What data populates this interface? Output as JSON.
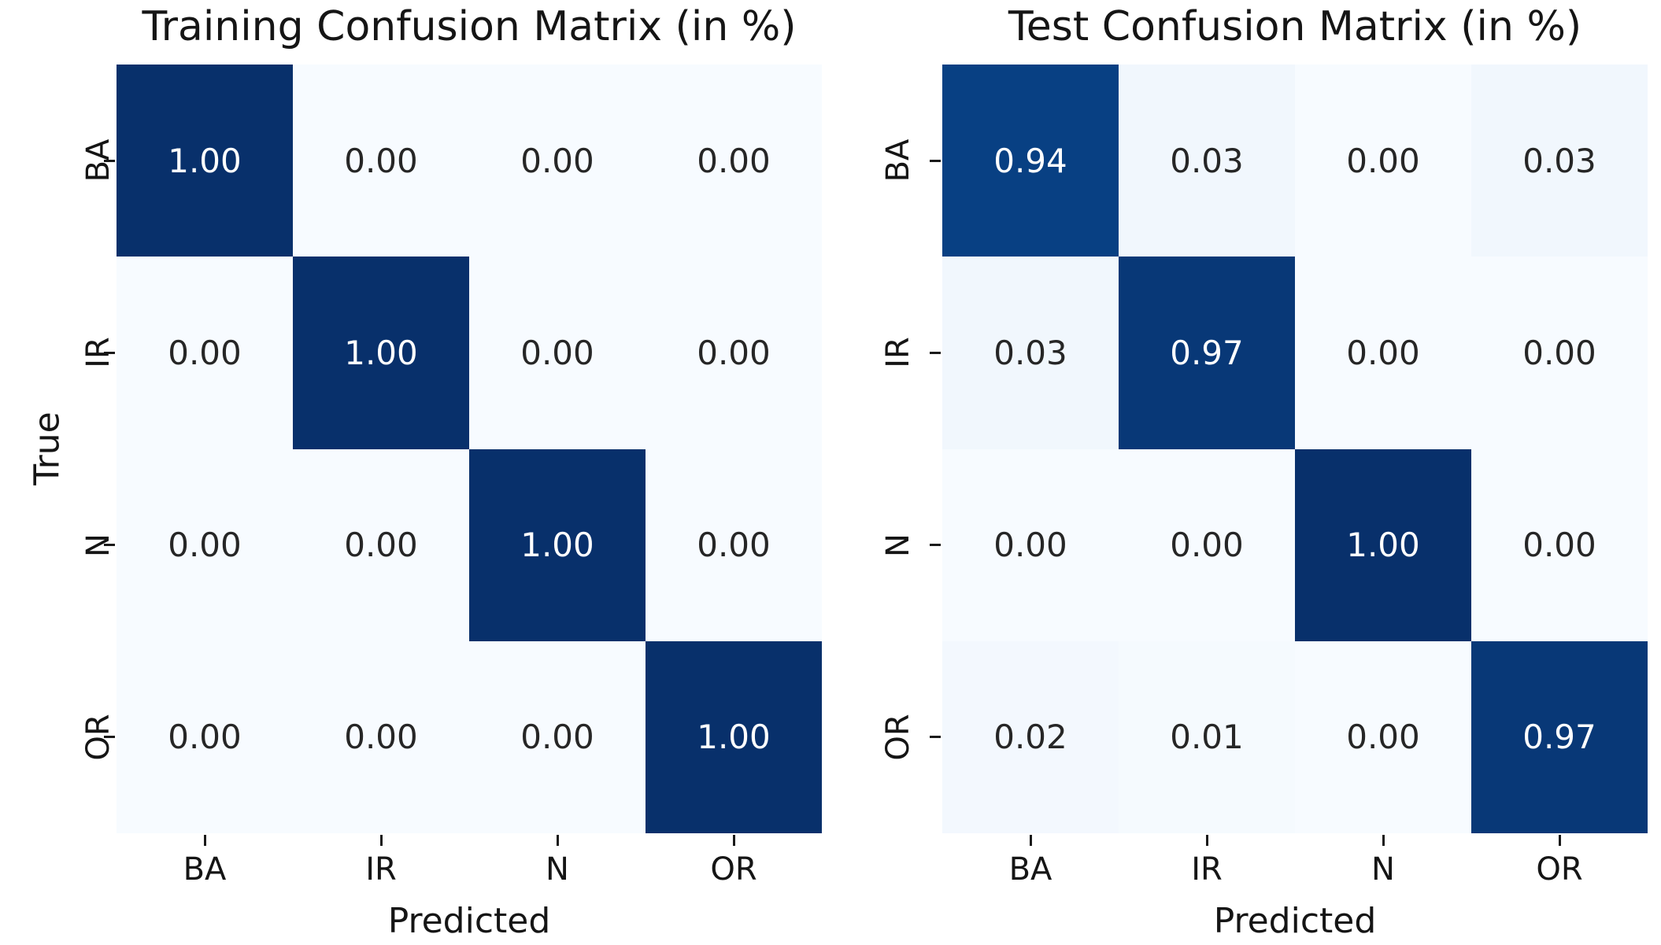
{
  "figure": {
    "background": "#ffffff"
  },
  "colormap": {
    "name": "Blues",
    "stops": [
      "#f7fbff",
      "#deebf7",
      "#c6dbef",
      "#9ecae1",
      "#6baed6",
      "#4292c6",
      "#2171b5",
      "#08519c",
      "#08306b"
    ]
  },
  "text_colors": {
    "on_light_cell": "#262626",
    "on_dark_cell": "#ffffff",
    "axis_text": "#151515"
  },
  "chart_data": [
    {
      "type": "heatmap",
      "title": "Training Confusion Matrix (in %)",
      "xlabel": "Predicted",
      "ylabel": "True",
      "x_categories": [
        "BA",
        "IR",
        "N",
        "OR"
      ],
      "y_categories": [
        "BA",
        "IR",
        "N",
        "OR"
      ],
      "values": [
        [
          1.0,
          0.0,
          0.0,
          0.0
        ],
        [
          0.0,
          1.0,
          0.0,
          0.0
        ],
        [
          0.0,
          0.0,
          1.0,
          0.0
        ],
        [
          0.0,
          0.0,
          0.0,
          1.0
        ]
      ],
      "value_decimals": 2,
      "vmin": 0,
      "vmax": 1,
      "colorbar": false,
      "grid": false
    },
    {
      "type": "heatmap",
      "title": "Test Confusion Matrix (in %)",
      "xlabel": "Predicted",
      "ylabel": "",
      "x_categories": [
        "BA",
        "IR",
        "N",
        "OR"
      ],
      "y_categories": [
        "BA",
        "IR",
        "N",
        "OR"
      ],
      "values": [
        [
          0.94,
          0.03,
          0.0,
          0.03
        ],
        [
          0.03,
          0.97,
          0.0,
          0.0
        ],
        [
          0.0,
          0.0,
          1.0,
          0.0
        ],
        [
          0.02,
          0.01,
          0.0,
          0.97
        ]
      ],
      "value_decimals": 2,
      "vmin": 0,
      "vmax": 1,
      "colorbar": false,
      "grid": false
    }
  ]
}
